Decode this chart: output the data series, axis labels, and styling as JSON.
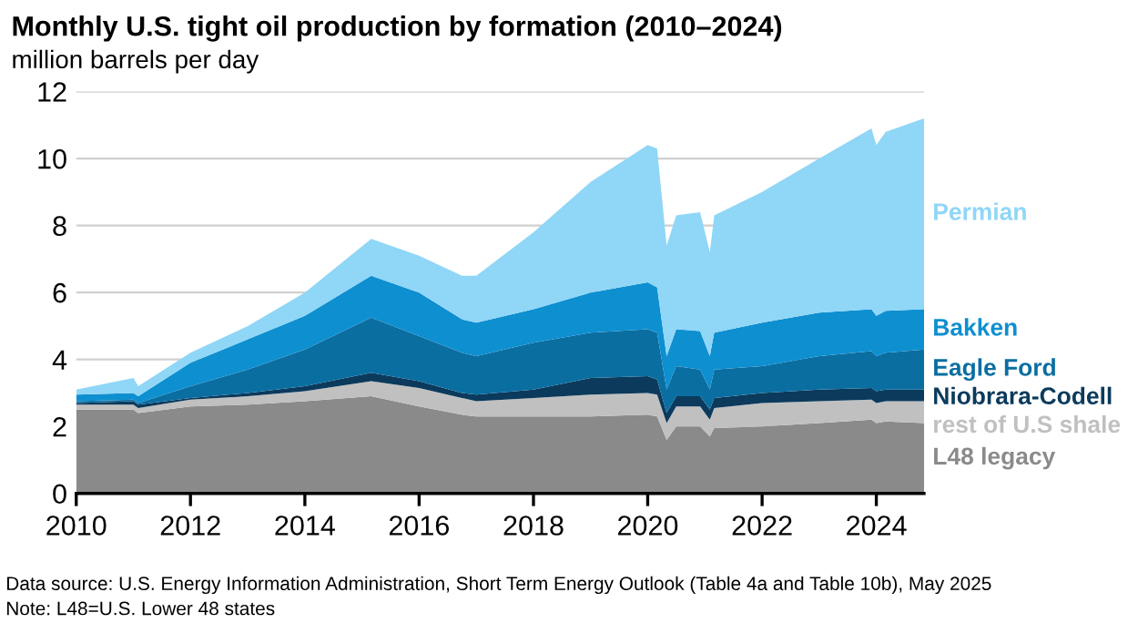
{
  "chart_data": {
    "type": "area",
    "stacked": true,
    "title": "Monthly U.S. tight oil production by formation (2010–2024)",
    "ylabel": "million barrels per day",
    "x": [
      "2010-01",
      "2011-01",
      "2011-02",
      "2012-01",
      "2013-01",
      "2014-01",
      "2015-03",
      "2016-01",
      "2016-10",
      "2017-01",
      "2018-01",
      "2019-01",
      "2020-01",
      "2020-03",
      "2020-05",
      "2020-07",
      "2020-12",
      "2021-02",
      "2021-03",
      "2022-01",
      "2023-01",
      "2023-12",
      "2024-01",
      "2024-03",
      "2024-11"
    ],
    "series": [
      {
        "name": "L48 legacy",
        "color": "#8a8a8a",
        "values": [
          2.5,
          2.5,
          2.4,
          2.6,
          2.65,
          2.75,
          2.9,
          2.6,
          2.35,
          2.3,
          2.3,
          2.3,
          2.35,
          2.3,
          1.6,
          2.0,
          2.0,
          1.7,
          1.95,
          2.0,
          2.1,
          2.2,
          2.1,
          2.15,
          2.1
        ]
      },
      {
        "name": "rest of U.S shale",
        "color": "#c0c0c0",
        "values": [
          0.15,
          0.15,
          0.15,
          0.2,
          0.25,
          0.3,
          0.45,
          0.55,
          0.5,
          0.45,
          0.55,
          0.65,
          0.65,
          0.65,
          0.5,
          0.6,
          0.6,
          0.5,
          0.6,
          0.7,
          0.65,
          0.6,
          0.6,
          0.6,
          0.65
        ]
      },
      {
        "name": "Niobrara-Codell",
        "color": "#0b3a5c",
        "values": [
          0.05,
          0.1,
          0.1,
          0.05,
          0.1,
          0.15,
          0.25,
          0.2,
          0.15,
          0.2,
          0.25,
          0.5,
          0.5,
          0.45,
          0.3,
          0.3,
          0.3,
          0.3,
          0.3,
          0.3,
          0.35,
          0.35,
          0.35,
          0.35,
          0.35
        ]
      },
      {
        "name": "Eagle Ford",
        "color": "#0b6ea1",
        "values": [
          0.05,
          0.05,
          0.05,
          0.35,
          0.7,
          1.1,
          1.65,
          1.35,
          1.2,
          1.15,
          1.4,
          1.35,
          1.4,
          1.4,
          0.7,
          0.9,
          0.8,
          0.6,
          0.85,
          0.8,
          1.0,
          1.1,
          1.05,
          1.1,
          1.2
        ]
      },
      {
        "name": "Bakken",
        "color": "#0e8fd0",
        "values": [
          0.2,
          0.2,
          0.2,
          0.7,
          0.9,
          1.0,
          1.25,
          1.3,
          1.0,
          1.0,
          1.0,
          1.2,
          1.4,
          1.35,
          1.0,
          1.1,
          1.15,
          1.0,
          1.1,
          1.3,
          1.3,
          1.25,
          1.2,
          1.25,
          1.2
        ]
      },
      {
        "name": "Permian",
        "color": "#8fd6f7",
        "values": [
          0.15,
          0.45,
          0.3,
          0.3,
          0.4,
          0.7,
          1.1,
          1.1,
          1.3,
          1.4,
          2.3,
          3.3,
          4.1,
          4.15,
          3.3,
          3.4,
          3.55,
          3.1,
          3.5,
          3.9,
          4.6,
          5.4,
          5.1,
          5.35,
          5.7
        ]
      }
    ],
    "xlim": [
      "2010-01",
      "2024-11"
    ],
    "xticks": [
      "2010",
      "2012",
      "2014",
      "2016",
      "2018",
      "2020",
      "2022",
      "2024"
    ],
    "ylim": [
      0,
      12
    ],
    "yticks": [
      0,
      2,
      4,
      6,
      8,
      10,
      12
    ],
    "grid": "y",
    "legend": false,
    "annotations": [
      "Data source: U.S. Energy Information Administration, Short Term Energy Outlook (Table 4a and Table 10b), May 2025",
      "Note: L48=U.S. Lower 48 states"
    ]
  }
}
